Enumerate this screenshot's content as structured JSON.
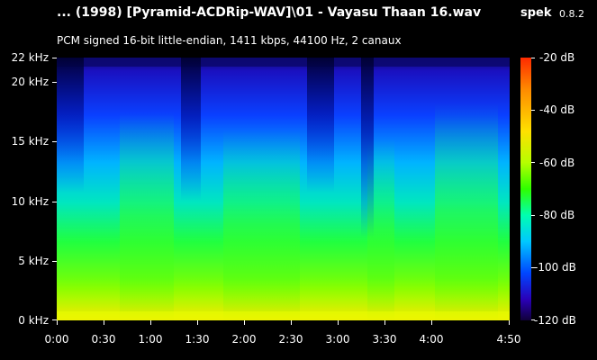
{
  "header": {
    "title": "... (1998) [Pyramid-ACDRip-WAV]\\01 - Vayasu Thaan 16.wav",
    "app_name": "spek",
    "version": "0.8.2",
    "subtitle": "PCM signed 16-bit little-endian, 1411 kbps, 44100 Hz, 2 canaux"
  },
  "y_axis": {
    "labels": [
      "22 kHz",
      "20 kHz",
      "15 kHz",
      "10 kHz",
      "5 kHz",
      "0 kHz"
    ],
    "values_khz": [
      22,
      20,
      15,
      10,
      5,
      0
    ]
  },
  "x_axis": {
    "labels": [
      "0:00",
      "0:30",
      "1:00",
      "1:30",
      "2:00",
      "2:30",
      "3:00",
      "3:30",
      "4:00",
      "4:50"
    ],
    "values_sec": [
      0,
      30,
      60,
      90,
      120,
      150,
      180,
      210,
      240,
      290
    ]
  },
  "legend": {
    "labels": [
      "-20 dB",
      "-40 dB",
      "-60 dB",
      "-80 dB",
      "-100 dB",
      "-120 dB"
    ],
    "values_db": [
      -20,
      -40,
      -60,
      -80,
      -100,
      -120
    ]
  },
  "colors": {
    "background": "#000000",
    "text": "#ffffff"
  }
}
